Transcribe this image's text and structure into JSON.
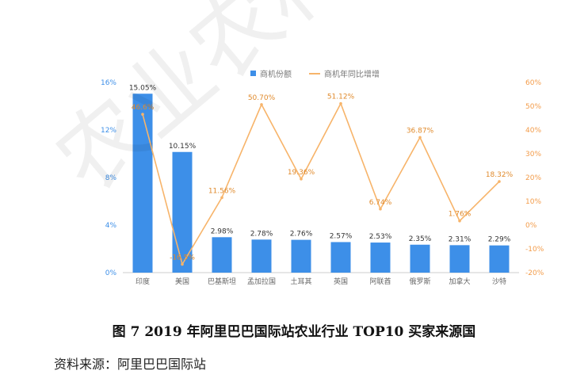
{
  "chart_data": {
    "type": "bar",
    "categories": [
      "印度",
      "美国",
      "巴基斯坦",
      "孟加拉国",
      "土耳其",
      "英国",
      "阿联酋",
      "俄罗斯",
      "加拿大",
      "沙特"
    ],
    "series": [
      {
        "name": "商机份额",
        "type": "bar",
        "axis": "left",
        "values": [
          15.05,
          10.15,
          2.98,
          2.78,
          2.76,
          2.57,
          2.53,
          2.35,
          2.31,
          2.29
        ],
        "labels": [
          "15.05%",
          "10.15%",
          "2.98%",
          "2.78%",
          "2.76%",
          "2.57%",
          "2.53%",
          "2.35%",
          "2.31%",
          "2.29%"
        ]
      },
      {
        "name": "商机年同比增增",
        "type": "line",
        "axis": "right",
        "values": [
          46.6,
          -16.5,
          11.56,
          50.7,
          19.36,
          51.12,
          6.74,
          36.87,
          1.76,
          18.32
        ],
        "labels": [
          "46.6%",
          "-16.5%",
          "11.56%",
          "50.70%",
          "19.36%",
          "51.12%",
          "6.74%",
          "36.87%",
          "1.76%",
          "18.32%"
        ]
      }
    ],
    "y_left": {
      "ticks": [
        "0%",
        "4%",
        "8%",
        "12%",
        "16%"
      ],
      "min": 0,
      "max": 16
    },
    "y_right": {
      "ticks": [
        "-20%",
        "-10%",
        "0%",
        "10%",
        "20%",
        "30%",
        "40%",
        "50%",
        "60%"
      ],
      "min": -20,
      "max": 60
    },
    "colors": {
      "bar": "#3d8fe8",
      "line": "#f7b46a",
      "left_axis": "#3d8fe8",
      "right_axis": "#f39c4a"
    },
    "legend": "top-center",
    "grid": false
  },
  "caption": "图 7   2019 年阿里巴巴国际站农业行业 TOP10 买家来源国",
  "source": "资料来源：阿里巴巴国际站",
  "watermark": "农业农村部"
}
